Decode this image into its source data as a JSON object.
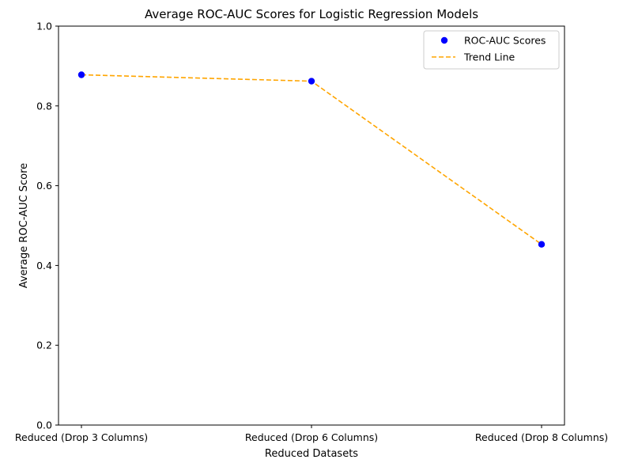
{
  "chart_data": {
    "type": "scatter",
    "title": "Average ROC-AUC Scores for Logistic Regression Models",
    "xlabel": "Reduced Datasets",
    "ylabel": "Average ROC-AUC Score",
    "categories": [
      "Reduced (Drop 3 Columns)",
      "Reduced (Drop 6 Columns)",
      "Reduced (Drop 8 Columns)"
    ],
    "ylim": [
      0,
      1.0
    ],
    "yticks": [
      "0.0",
      "0.2",
      "0.4",
      "0.6",
      "0.8",
      "1.0"
    ],
    "grid": false,
    "legend_position": "top-right",
    "series": [
      {
        "name": "ROC-AUC Scores",
        "kind": "scatter",
        "color": "#0000ff",
        "values": [
          0.878,
          0.862,
          0.453
        ]
      },
      {
        "name": "Trend Line",
        "kind": "dashed-line",
        "color": "#ffa500",
        "values": [
          0.878,
          0.862,
          0.453
        ]
      }
    ]
  }
}
